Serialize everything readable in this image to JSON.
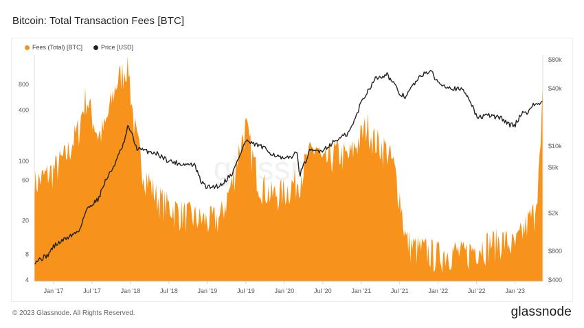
{
  "header": {
    "title": "Bitcoin: Total Transaction Fees [BTC]"
  },
  "footer": {
    "copyright": "© 2023 Glassnode. All Rights Reserved.",
    "brand": "glassnode"
  },
  "watermark": "glassnode",
  "colors": {
    "fees": "#f7931a",
    "price": "#222222",
    "grid": "#ececec"
  },
  "chart_data": {
    "type": "area",
    "title": "Bitcoin: Total Transaction Fees [BTC]",
    "legend": [
      {
        "name": "Fees (Total) [BTC]",
        "color": "#f7931a"
      },
      {
        "name": "Price [USD]",
        "color": "#222222"
      }
    ],
    "x_ticks": [
      "Jan '17",
      "Jul '17",
      "Jan '18",
      "Jul '18",
      "Jan '19",
      "Jul '19",
      "Jan '20",
      "Jul '20",
      "Jan '21",
      "Jul '21",
      "Jan '22",
      "Jul '22",
      "Jan '23"
    ],
    "x_range": [
      "2016-10",
      "2023-04"
    ],
    "left_axis": {
      "label": "Fees (Total) [BTC]",
      "scale": "log",
      "range": [
        4,
        2000
      ],
      "ticks": [
        "4",
        "8",
        "20",
        "60",
        "100",
        "400",
        "800"
      ],
      "tick_values": [
        4,
        8,
        20,
        60,
        100,
        400,
        800
      ]
    },
    "right_axis": {
      "label": "Price [USD]",
      "scale": "log",
      "range": [
        400,
        90000
      ],
      "ticks": [
        "$400",
        "$800",
        "$2k",
        "$6k",
        "$10k",
        "$40k",
        "$80k"
      ],
      "tick_values": [
        400,
        800,
        2000,
        6000,
        10000,
        40000,
        80000
      ]
    },
    "series": [
      {
        "name": "Fees (Total) [BTC]",
        "axis": "left",
        "x": [
          2016.75,
          2016.92,
          2017.0,
          2017.17,
          2017.33,
          2017.42,
          2017.5,
          2017.58,
          2017.67,
          2017.75,
          2017.83,
          2017.92,
          2017.97,
          2018.0,
          2018.04,
          2018.08,
          2018.17,
          2018.33,
          2018.5,
          2018.67,
          2018.83,
          2019.0,
          2019.17,
          2019.33,
          2019.42,
          2019.5,
          2019.58,
          2019.67,
          2019.83,
          2020.0,
          2020.17,
          2020.33,
          2020.42,
          2020.5,
          2020.67,
          2020.83,
          2021.0,
          2021.08,
          2021.17,
          2021.33,
          2021.42,
          2021.5,
          2021.58,
          2021.67,
          2021.83,
          2022.0,
          2022.17,
          2022.33,
          2022.5,
          2022.67,
          2022.83,
          2023.0,
          2023.17,
          2023.25,
          2023.33,
          2023.36
        ],
        "values": [
          55,
          70,
          80,
          120,
          250,
          600,
          350,
          200,
          250,
          500,
          900,
          1200,
          1500,
          700,
          300,
          180,
          80,
          40,
          30,
          25,
          22,
          20,
          22,
          60,
          150,
          260,
          120,
          60,
          40,
          45,
          60,
          120,
          150,
          90,
          130,
          110,
          200,
          280,
          180,
          140,
          90,
          40,
          12,
          10,
          9,
          8,
          9,
          8,
          10,
          11,
          12,
          10,
          20,
          25,
          120,
          700
        ]
      },
      {
        "name": "Price [USD]",
        "axis": "right",
        "x": [
          2016.75,
          2016.92,
          2017.0,
          2017.17,
          2017.33,
          2017.42,
          2017.5,
          2017.58,
          2017.67,
          2017.75,
          2017.83,
          2017.92,
          2017.97,
          2018.0,
          2018.08,
          2018.17,
          2018.33,
          2018.5,
          2018.67,
          2018.83,
          2018.92,
          2019.0,
          2019.17,
          2019.33,
          2019.42,
          2019.5,
          2019.58,
          2019.67,
          2019.83,
          2020.0,
          2020.17,
          2020.2,
          2020.33,
          2020.5,
          2020.67,
          2020.83,
          2020.92,
          2021.0,
          2021.08,
          2021.17,
          2021.33,
          2021.42,
          2021.5,
          2021.58,
          2021.67,
          2021.83,
          2021.92,
          2022.0,
          2022.17,
          2022.33,
          2022.42,
          2022.5,
          2022.67,
          2022.83,
          2022.92,
          2023.0,
          2023.08,
          2023.17,
          2023.25,
          2023.36
        ],
        "values": [
          620,
          720,
          900,
          1100,
          1300,
          2100,
          2500,
          2800,
          4300,
          5500,
          7500,
          11000,
          16500,
          14500,
          9500,
          9000,
          8500,
          7000,
          6500,
          6400,
          4200,
          3700,
          3900,
          5300,
          8000,
          11500,
          10500,
          10200,
          8500,
          7200,
          8500,
          5000,
          8800,
          9100,
          11500,
          13500,
          19000,
          29000,
          37000,
          50000,
          57000,
          45000,
          35000,
          33000,
          43000,
          60000,
          58000,
          46000,
          41000,
          38000,
          30000,
          20000,
          21000,
          19500,
          16800,
          16600,
          22000,
          23000,
          27500,
          28000
        ]
      }
    ]
  }
}
